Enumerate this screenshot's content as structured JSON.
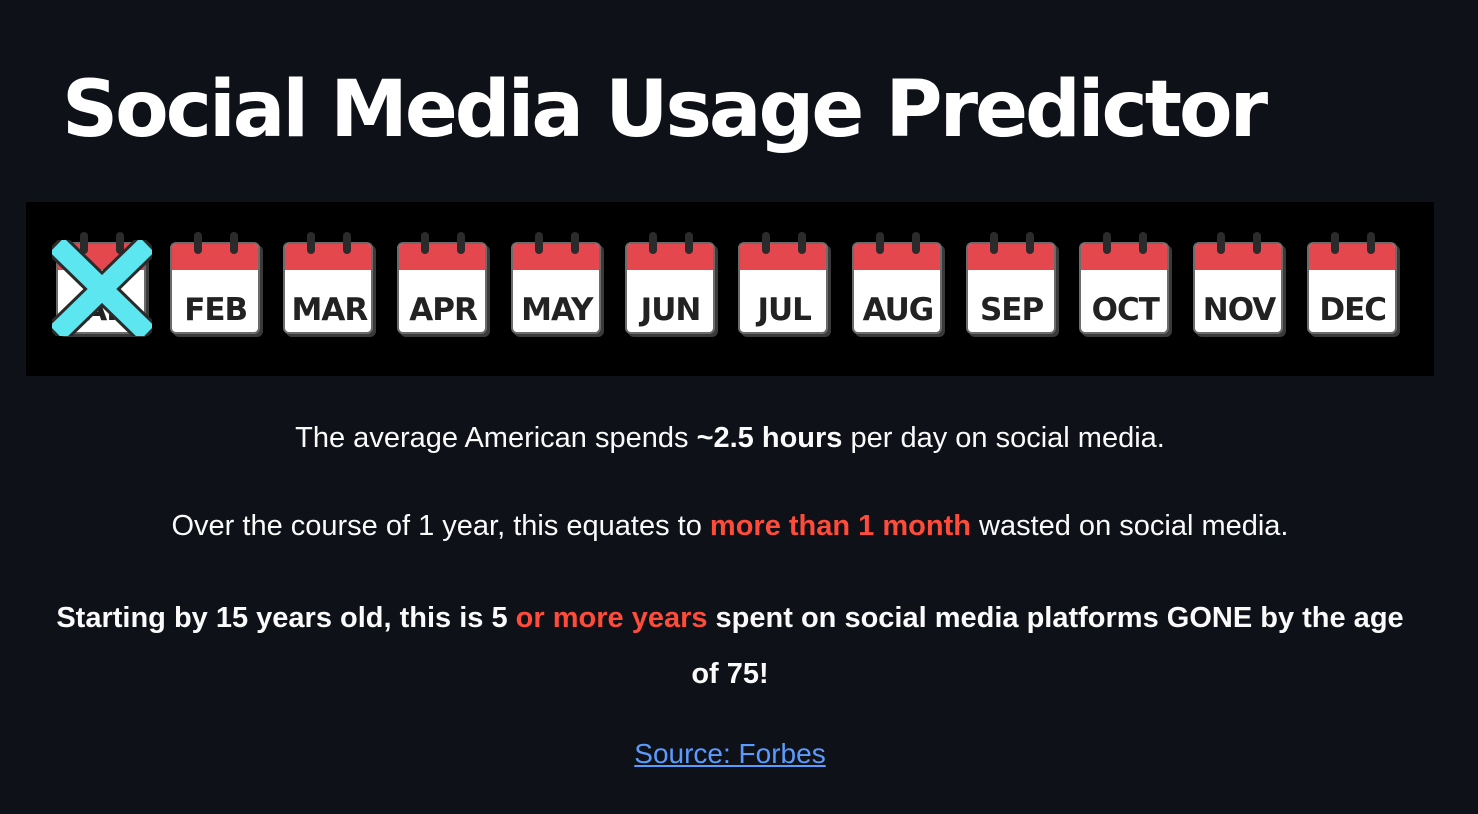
{
  "page": {
    "title": "Social Media Usage Predictor"
  },
  "banner": {
    "months": [
      "JAN",
      "FEB",
      "MAR",
      "APR",
      "MAY",
      "JUN",
      "JUL",
      "AUG",
      "SEP",
      "OCT",
      "NOV",
      "DEC"
    ],
    "crossed_out_index": 0,
    "colors": {
      "header_red": "#e5474f",
      "cross_cyan": "#5ce6f0"
    }
  },
  "stats": {
    "line1": {
      "before": "The average American spends ",
      "highlight": "~2.5 hours",
      "after": " per day on social media."
    },
    "line2": {
      "before": "Over the course of 1 year, this equates to ",
      "highlight": "more than 1 month",
      "after": " wasted on social media."
    },
    "line3": {
      "before": "Starting by 15 years old, this is 5 ",
      "highlight": "or more years",
      "after": " spent on social media platforms GONE by the age of 75!"
    }
  },
  "source": {
    "label": "Source: Forbes"
  },
  "colors": {
    "background": "#0e1117",
    "highlight_red": "#ff4b3a",
    "link_blue": "#5b9bff"
  }
}
